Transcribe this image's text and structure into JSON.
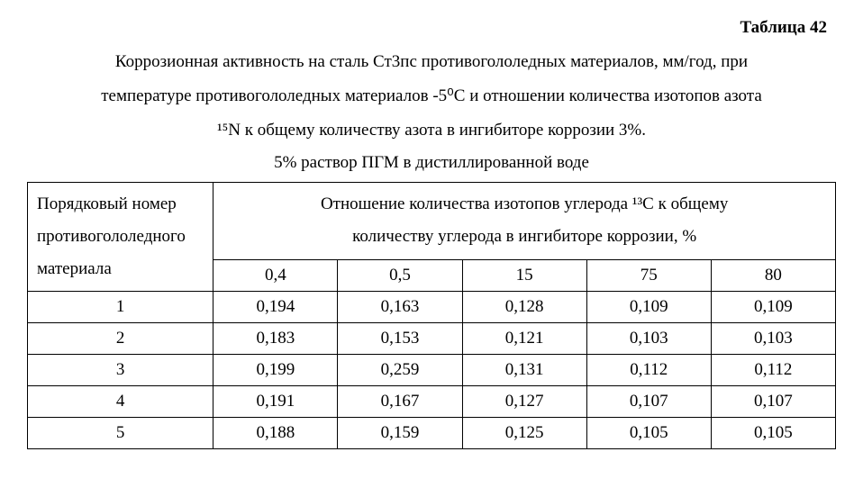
{
  "table_label": "Таблица 42",
  "title_lines": [
    "Коррозионная активность на сталь Ст3пс противогололедных материалов, мм/год, при",
    "температуре противогололедных материалов -5⁰С и отношении количества изотопов азота",
    "¹⁵N  к общему количеству азота в ингибиторе коррозии 3%."
  ],
  "subtitle": "5% раствор ПГМ в дистиллированной воде",
  "row_header_lines": [
    "Порядковый номер",
    "противогололедного",
    "материала"
  ],
  "col_group_lines": [
    "Отношение количества изотопов углерода ¹³С к общему",
    "количеству углерода в ингибиторе коррозии, %"
  ],
  "percent_columns": [
    "0,4",
    "0,5",
    "15",
    "75",
    "80"
  ],
  "rows": [
    {
      "id": "1",
      "values": [
        "0,194",
        "0,163",
        "0,128",
        "0,109",
        "0,109"
      ]
    },
    {
      "id": "2",
      "values": [
        "0,183",
        "0,153",
        "0,121",
        "0,103",
        "0,103"
      ]
    },
    {
      "id": "3",
      "values": [
        "0,199",
        "0,259",
        "0,131",
        "0,112",
        "0,112"
      ]
    },
    {
      "id": "4",
      "values": [
        "0,191",
        "0,167",
        "0,127",
        "0,107",
        "0,107"
      ]
    },
    {
      "id": "5",
      "values": [
        "0,188",
        "0,159",
        "0,125",
        "0,105",
        "0,105"
      ]
    }
  ]
}
